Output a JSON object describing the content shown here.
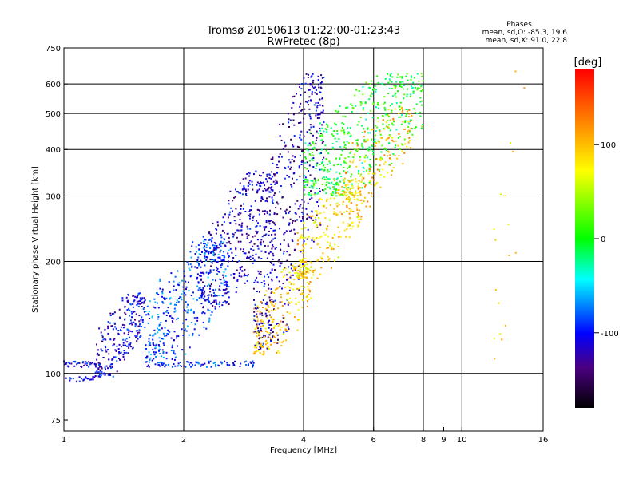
{
  "chart_data": {
    "type": "scatter",
    "title": "Tromsø 20150613 01:22:00-01:23:43",
    "subtitle": "RwPretec (8p)",
    "xlabel": "Frequency [MHz]",
    "ylabel": "Stationary phase Virtual Height [km]",
    "x_scale": "log",
    "y_scale": "log",
    "xlim": [
      1,
      16
    ],
    "ylim": [
      70,
      750
    ],
    "x_ticks": [
      1,
      2,
      4,
      6,
      8,
      9,
      10,
      16
    ],
    "x_tick_labels": [
      "1",
      "2",
      "4",
      "6",
      "8",
      "9",
      "10",
      "16"
    ],
    "x_gridlines": [
      2,
      4,
      6,
      8,
      10
    ],
    "y_ticks": [
      75,
      100,
      200,
      300,
      400,
      500,
      600,
      750
    ],
    "y_tick_labels": [
      "75",
      "100",
      "200",
      "300",
      "400",
      "500",
      "600",
      "750"
    ],
    "y_gridlines": [
      100,
      200,
      300,
      400,
      500,
      600
    ],
    "grid": true,
    "phase_stats": {
      "heading": "Phases",
      "line_o": "mean, sd,O: -85.3, 19.6",
      "line_x": "mean, sd,X:  91.0, 22.8"
    },
    "colorbar": {
      "label": "[deg]",
      "range": [
        -180,
        180
      ],
      "ticks": [
        100,
        0,
        -100
      ],
      "tick_labels": [
        "100",
        "0",
        "-100"
      ]
    },
    "clusters": [
      {
        "x_range": [
          1.0,
          1.25
        ],
        "h_range": [
          104,
          108
        ],
        "phase": -110,
        "n": 40,
        "kind": "trace"
      },
      {
        "x_range": [
          1.0,
          1.2
        ],
        "h_range": [
          95,
          98
        ],
        "phase": -105,
        "n": 25,
        "kind": "trace"
      },
      {
        "x_range": [
          1.2,
          1.6
        ],
        "h_range": [
          98,
          165
        ],
        "phase": -110,
        "n": 260,
        "kind": "cloud"
      },
      {
        "x_range": [
          1.6,
          3.0
        ],
        "h_range": [
          104,
          108
        ],
        "phase": -95,
        "n": 90,
        "kind": "trace"
      },
      {
        "x_range": [
          1.6,
          2.6
        ],
        "h_range": [
          108,
          230
        ],
        "phase": -85,
        "n": 420,
        "kind": "cloud"
      },
      {
        "x_range": [
          2.2,
          3.4
        ],
        "h_range": [
          150,
          350
        ],
        "phase": -115,
        "n": 380,
        "kind": "cloud"
      },
      {
        "x_range": [
          3.0,
          4.5
        ],
        "h_range": [
          115,
          640
        ],
        "phase": -120,
        "n": 520,
        "kind": "cloud"
      },
      {
        "x_range": [
          3.0,
          4.2
        ],
        "h_range": [
          112,
          200
        ],
        "phase": 95,
        "n": 220,
        "kind": "cloud"
      },
      {
        "x_range": [
          3.8,
          5.6
        ],
        "h_range": [
          180,
          330
        ],
        "phase": 85,
        "n": 260,
        "kind": "cloud"
      },
      {
        "x_range": [
          4.0,
          8.0
        ],
        "h_range": [
          300,
          640
        ],
        "phase": 0,
        "n": 520,
        "kind": "cloud"
      },
      {
        "x_range": [
          5.0,
          7.5
        ],
        "h_range": [
          280,
          520
        ],
        "phase": 100,
        "n": 160,
        "kind": "cloud"
      },
      {
        "x_range": [
          12.0,
          14.5
        ],
        "h_range": [
          100,
          650
        ],
        "phase": 90,
        "n": 18,
        "kind": "cloud"
      }
    ]
  }
}
